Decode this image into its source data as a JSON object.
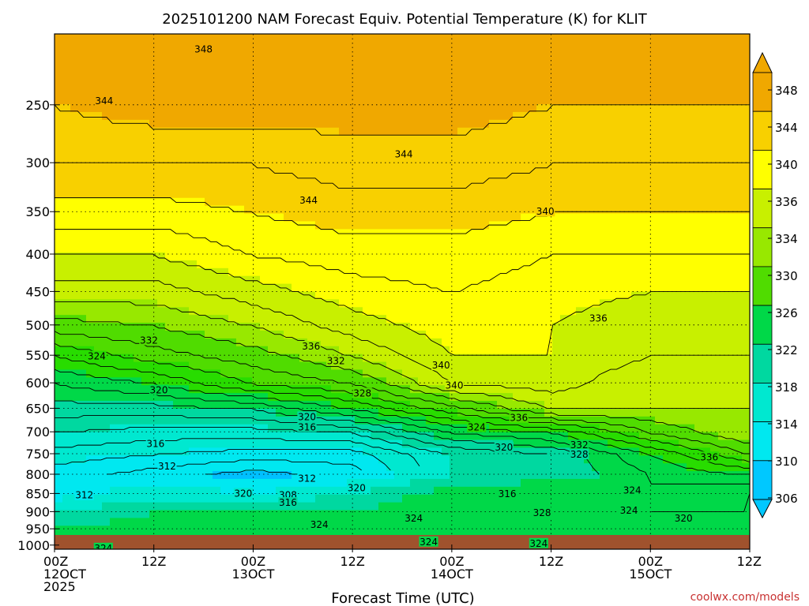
{
  "chart_data": {
    "type": "heatmap",
    "title": "2025101200 NAM Forecast Equiv. Potential Temperature (K) for KLIT",
    "xlabel": "Forecast Time (UTC)",
    "credit": "coolwx.com/models",
    "x_ticks": [
      {
        "hour": 0,
        "label1": "00Z",
        "label2": "12OCT",
        "label3": "2025"
      },
      {
        "hour": 12,
        "label1": "12Z",
        "label2": "",
        "label3": ""
      },
      {
        "hour": 24,
        "label1": "00Z",
        "label2": "13OCT",
        "label3": ""
      },
      {
        "hour": 36,
        "label1": "12Z",
        "label2": "",
        "label3": ""
      },
      {
        "hour": 48,
        "label1": "00Z",
        "label2": "14OCT",
        "label3": ""
      },
      {
        "hour": 60,
        "label1": "12Z",
        "label2": "",
        "label3": ""
      },
      {
        "hour": 72,
        "label1": "00Z",
        "label2": "15OCT",
        "label3": ""
      },
      {
        "hour": 84,
        "label1": "12Z",
        "label2": "",
        "label3": ""
      }
    ],
    "xlim": [
      0,
      84
    ],
    "y_ticks": [
      "250",
      "300",
      "350",
      "400",
      "450",
      "500",
      "550",
      "600",
      "650",
      "700",
      "750",
      "800",
      "850",
      "900",
      "950",
      "1000"
    ],
    "y_tick_values": [
      250,
      300,
      350,
      400,
      450,
      500,
      550,
      600,
      650,
      700,
      750,
      800,
      850,
      900,
      950,
      1000
    ],
    "ylim": [
      200,
      1013
    ],
    "y_scale": "log",
    "colorbar": {
      "labels": [
        "348",
        "344",
        "340",
        "336",
        "334",
        "330",
        "326",
        "322",
        "318",
        "314",
        "310",
        "306"
      ],
      "colors": [
        "#f0a800",
        "#f8d000",
        "#ffff00",
        "#c8f000",
        "#98e800",
        "#50dc00",
        "#00d848",
        "#00d8a0",
        "#00e8d0",
        "#00e8f0",
        "#00c8ff"
      ]
    },
    "series": [
      {
        "hour": 0,
        "theta_e_by_level": [
          348,
          346,
          343,
          340,
          337,
          333,
          328,
          324,
          321,
          318,
          315,
          313,
          312,
          318,
          322,
          324
        ]
      },
      {
        "hour": 12,
        "theta_e_by_level": [
          349,
          346,
          343,
          340,
          337,
          334,
          331,
          326,
          321,
          317,
          314,
          311,
          316,
          322,
          324,
          325
        ]
      },
      {
        "hour": 24,
        "theta_e_by_level": [
          349,
          346,
          344,
          342,
          339,
          336,
          333,
          330,
          322,
          317,
          313,
          309,
          314,
          322,
          324,
          325
        ]
      },
      {
        "hour": 36,
        "theta_e_by_level": [
          349,
          347,
          345,
          343,
          341,
          339,
          336,
          332,
          326,
          318,
          313,
          311,
          318,
          322,
          324,
          325
        ]
      },
      {
        "hour": 48,
        "theta_e_by_level": [
          349,
          347,
          345,
          343,
          342,
          341,
          340,
          338,
          331,
          324,
          318,
          318,
          324,
          326,
          324,
          325
        ]
      },
      {
        "hour": 60,
        "theta_e_by_level": [
          348,
          346,
          344,
          342,
          341,
          340,
          340,
          339,
          336,
          326,
          320,
          320,
          326,
          326,
          324,
          325
        ]
      },
      {
        "hour": 72,
        "theta_e_by_level": [
          348,
          346,
          344,
          342,
          340,
          338,
          338,
          336,
          336,
          332,
          326,
          324,
          324,
          322,
          323,
          324
        ]
      },
      {
        "hour": 84,
        "theta_e_by_level": [
          348,
          346,
          344,
          342,
          340,
          339,
          338,
          337,
          336,
          336,
          332,
          326,
          322,
          322,
          323,
          324
        ]
      }
    ],
    "contour_labels": [
      {
        "hour": 18.0,
        "pressure": 210,
        "label": "348"
      },
      {
        "hour": 6.0,
        "pressure": 247,
        "label": "344"
      },
      {
        "hour": 42.2,
        "pressure": 292,
        "label": "344"
      },
      {
        "hour": 30.7,
        "pressure": 338,
        "label": "344"
      },
      {
        "hour": 59.3,
        "pressure": 350,
        "label": "340"
      },
      {
        "hour": 65.7,
        "pressure": 490,
        "label": "336"
      },
      {
        "hour": 11.4,
        "pressure": 525,
        "label": "332"
      },
      {
        "hour": 5.1,
        "pressure": 552,
        "label": "324"
      },
      {
        "hour": 31.0,
        "pressure": 535,
        "label": "336"
      },
      {
        "hour": 34.0,
        "pressure": 560,
        "label": "332"
      },
      {
        "hour": 48.3,
        "pressure": 605,
        "label": "340"
      },
      {
        "hour": 46.7,
        "pressure": 568,
        "label": "340"
      },
      {
        "hour": 37.2,
        "pressure": 620,
        "label": "328"
      },
      {
        "hour": 12.6,
        "pressure": 614,
        "label": "320"
      },
      {
        "hour": 30.5,
        "pressure": 668,
        "label": "320"
      },
      {
        "hour": 30.5,
        "pressure": 690,
        "label": "316"
      },
      {
        "hour": 51.0,
        "pressure": 690,
        "label": "324"
      },
      {
        "hour": 56.1,
        "pressure": 670,
        "label": "336"
      },
      {
        "hour": 12.2,
        "pressure": 727,
        "label": "316"
      },
      {
        "hour": 54.3,
        "pressure": 735,
        "label": "320"
      },
      {
        "hour": 63.4,
        "pressure": 730,
        "label": "332"
      },
      {
        "hour": 63.4,
        "pressure": 752,
        "label": "328"
      },
      {
        "hour": 79.1,
        "pressure": 758,
        "label": "336"
      },
      {
        "hour": 13.6,
        "pressure": 780,
        "label": "312"
      },
      {
        "hour": 30.5,
        "pressure": 811,
        "label": "312"
      },
      {
        "hour": 36.5,
        "pressure": 836,
        "label": "320"
      },
      {
        "hour": 22.8,
        "pressure": 850,
        "label": "320"
      },
      {
        "hour": 3.6,
        "pressure": 855,
        "label": "312"
      },
      {
        "hour": 28.2,
        "pressure": 855,
        "label": "308"
      },
      {
        "hour": 28.2,
        "pressure": 875,
        "label": "316"
      },
      {
        "hour": 54.7,
        "pressure": 851,
        "label": "316"
      },
      {
        "hour": 69.8,
        "pressure": 842,
        "label": "324"
      },
      {
        "hour": 69.4,
        "pressure": 897,
        "label": "324"
      },
      {
        "hour": 58.9,
        "pressure": 904,
        "label": "328"
      },
      {
        "hour": 76.0,
        "pressure": 920,
        "label": "320"
      },
      {
        "hour": 43.4,
        "pressure": 920,
        "label": "324"
      },
      {
        "hour": 32.0,
        "pressure": 938,
        "label": "324"
      },
      {
        "hour": 45.2,
        "pressure": 990,
        "label": "324"
      },
      {
        "hour": 58.5,
        "pressure": 995,
        "label": "324"
      },
      {
        "hour": 5.9,
        "pressure": 1065,
        "label": "324"
      }
    ]
  }
}
